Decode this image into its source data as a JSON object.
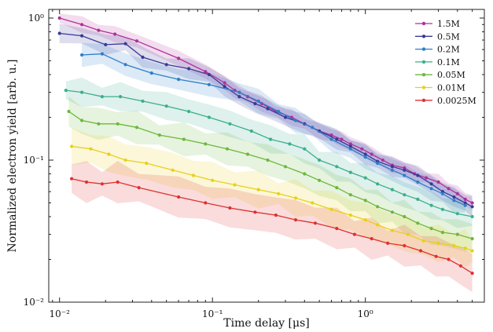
{
  "chart_data": {
    "type": "line",
    "scale": {
      "x": "log",
      "y": "log"
    },
    "xlabel": "Time delay [μs]",
    "ylabel": "Normalized electron yield [arb. u.]",
    "xlim": [
      0.0085,
      6
    ],
    "ylim": [
      0.01,
      1.15
    ],
    "x_ticks": [
      {
        "value": 0.01,
        "label": "10⁻²"
      },
      {
        "value": 0.1,
        "label": "10⁻¹"
      },
      {
        "value": 1,
        "label": "10⁰"
      }
    ],
    "y_ticks": [
      {
        "value": 0.01,
        "label": "10⁻²"
      },
      {
        "value": 0.1,
        "label": "10⁻¹"
      },
      {
        "value": 1,
        "label": "10⁰"
      }
    ],
    "grid": false,
    "legend_position": "top-right",
    "series": [
      {
        "name": "1.5M",
        "color": "#b0309a",
        "points": [
          [
            0.01,
            1.0
          ],
          [
            0.014,
            0.9
          ],
          [
            0.018,
            0.82
          ],
          [
            0.023,
            0.77
          ],
          [
            0.032,
            0.69
          ],
          [
            0.06,
            0.52
          ],
          [
            0.09,
            0.42
          ],
          [
            0.12,
            0.35
          ],
          [
            0.14,
            0.31
          ],
          [
            0.17,
            0.28
          ],
          [
            0.21,
            0.25
          ],
          [
            0.26,
            0.22
          ],
          [
            0.33,
            0.2
          ],
          [
            0.4,
            0.18
          ],
          [
            0.5,
            0.16
          ],
          [
            0.6,
            0.15
          ],
          [
            0.7,
            0.14
          ],
          [
            0.8,
            0.13
          ],
          [
            0.95,
            0.12
          ],
          [
            1.1,
            0.11
          ],
          [
            1.3,
            0.1
          ],
          [
            1.5,
            0.092
          ],
          [
            1.8,
            0.088
          ],
          [
            2.1,
            0.08
          ],
          [
            2.5,
            0.075
          ],
          [
            3.0,
            0.07
          ],
          [
            3.5,
            0.063
          ],
          [
            4.0,
            0.058
          ],
          [
            4.5,
            0.053
          ],
          [
            5.0,
            0.05
          ]
        ]
      },
      {
        "name": "0.5M",
        "color": "#3a3a98",
        "points": [
          [
            0.01,
            0.78
          ],
          [
            0.014,
            0.75
          ],
          [
            0.02,
            0.65
          ],
          [
            0.027,
            0.66
          ],
          [
            0.035,
            0.53
          ],
          [
            0.05,
            0.47
          ],
          [
            0.07,
            0.44
          ],
          [
            0.095,
            0.4
          ],
          [
            0.12,
            0.33
          ],
          [
            0.15,
            0.28
          ],
          [
            0.19,
            0.25
          ],
          [
            0.23,
            0.23
          ],
          [
            0.3,
            0.2
          ],
          [
            0.4,
            0.18
          ],
          [
            0.5,
            0.16
          ],
          [
            0.65,
            0.14
          ],
          [
            0.8,
            0.125
          ],
          [
            1.0,
            0.11
          ],
          [
            1.2,
            0.098
          ],
          [
            1.5,
            0.09
          ],
          [
            1.8,
            0.085
          ],
          [
            2.2,
            0.078
          ],
          [
            2.7,
            0.068
          ],
          [
            3.2,
            0.06
          ],
          [
            3.8,
            0.055
          ],
          [
            4.5,
            0.05
          ],
          [
            5.0,
            0.047
          ]
        ]
      },
      {
        "name": "0.2M",
        "color": "#2e7ec8",
        "points": [
          [
            0.014,
            0.55
          ],
          [
            0.019,
            0.56
          ],
          [
            0.027,
            0.47
          ],
          [
            0.04,
            0.41
          ],
          [
            0.06,
            0.37
          ],
          [
            0.095,
            0.34
          ],
          [
            0.15,
            0.3
          ],
          [
            0.2,
            0.26
          ],
          [
            0.27,
            0.22
          ],
          [
            0.35,
            0.19
          ],
          [
            0.45,
            0.17
          ],
          [
            0.6,
            0.14
          ],
          [
            0.8,
            0.12
          ],
          [
            1.0,
            0.105
          ],
          [
            1.2,
            0.095
          ],
          [
            1.5,
            0.085
          ],
          [
            1.8,
            0.078
          ],
          [
            2.2,
            0.07
          ],
          [
            2.7,
            0.063
          ],
          [
            3.2,
            0.058
          ],
          [
            3.8,
            0.052
          ],
          [
            4.5,
            0.048
          ]
        ]
      },
      {
        "name": "0.1M",
        "color": "#3cae8c",
        "points": [
          [
            0.011,
            0.31
          ],
          [
            0.014,
            0.3
          ],
          [
            0.019,
            0.28
          ],
          [
            0.025,
            0.28
          ],
          [
            0.035,
            0.26
          ],
          [
            0.05,
            0.24
          ],
          [
            0.07,
            0.22
          ],
          [
            0.095,
            0.2
          ],
          [
            0.13,
            0.18
          ],
          [
            0.18,
            0.16
          ],
          [
            0.24,
            0.14
          ],
          [
            0.32,
            0.13
          ],
          [
            0.4,
            0.12
          ],
          [
            0.5,
            0.1
          ],
          [
            0.65,
            0.09
          ],
          [
            0.8,
            0.082
          ],
          [
            1.0,
            0.075
          ],
          [
            1.2,
            0.068
          ],
          [
            1.5,
            0.062
          ],
          [
            1.8,
            0.057
          ],
          [
            2.2,
            0.053
          ],
          [
            2.7,
            0.048
          ],
          [
            3.2,
            0.045
          ],
          [
            4.0,
            0.042
          ],
          [
            5.0,
            0.04
          ]
        ]
      },
      {
        "name": "0.05M",
        "color": "#6cb83c",
        "points": [
          [
            0.0115,
            0.22
          ],
          [
            0.014,
            0.19
          ],
          [
            0.018,
            0.18
          ],
          [
            0.024,
            0.18
          ],
          [
            0.032,
            0.17
          ],
          [
            0.045,
            0.15
          ],
          [
            0.065,
            0.14
          ],
          [
            0.09,
            0.13
          ],
          [
            0.125,
            0.12
          ],
          [
            0.17,
            0.11
          ],
          [
            0.23,
            0.1
          ],
          [
            0.3,
            0.09
          ],
          [
            0.4,
            0.08
          ],
          [
            0.5,
            0.072
          ],
          [
            0.65,
            0.064
          ],
          [
            0.8,
            0.057
          ],
          [
            1.0,
            0.052
          ],
          [
            1.2,
            0.047
          ],
          [
            1.5,
            0.043
          ],
          [
            1.8,
            0.04
          ],
          [
            2.2,
            0.036
          ],
          [
            2.7,
            0.033
          ],
          [
            3.2,
            0.031
          ],
          [
            4.0,
            0.03
          ],
          [
            5.0,
            0.028
          ]
        ]
      },
      {
        "name": "0.01M",
        "color": "#e8d01a",
        "points": [
          [
            0.012,
            0.125
          ],
          [
            0.016,
            0.12
          ],
          [
            0.021,
            0.11
          ],
          [
            0.027,
            0.1
          ],
          [
            0.037,
            0.095
          ],
          [
            0.055,
            0.085
          ],
          [
            0.075,
            0.078
          ],
          [
            0.1,
            0.072
          ],
          [
            0.14,
            0.067
          ],
          [
            0.2,
            0.062
          ],
          [
            0.27,
            0.058
          ],
          [
            0.35,
            0.054
          ],
          [
            0.45,
            0.05
          ],
          [
            0.6,
            0.045
          ],
          [
            0.8,
            0.041
          ],
          [
            1.0,
            0.038
          ],
          [
            1.2,
            0.035
          ],
          [
            1.5,
            0.032
          ],
          [
            1.9,
            0.03
          ],
          [
            2.4,
            0.027
          ],
          [
            3.0,
            0.026
          ],
          [
            3.8,
            0.025
          ],
          [
            4.5,
            0.024
          ],
          [
            5.0,
            0.023
          ]
        ]
      },
      {
        "name": "0.0025M",
        "color": "#e03030",
        "points": [
          [
            0.012,
            0.074
          ],
          [
            0.015,
            0.07
          ],
          [
            0.019,
            0.068
          ],
          [
            0.024,
            0.07
          ],
          [
            0.033,
            0.064
          ],
          [
            0.06,
            0.055
          ],
          [
            0.09,
            0.05
          ],
          [
            0.13,
            0.046
          ],
          [
            0.19,
            0.043
          ],
          [
            0.26,
            0.041
          ],
          [
            0.35,
            0.038
          ],
          [
            0.47,
            0.036
          ],
          [
            0.65,
            0.033
          ],
          [
            0.85,
            0.03
          ],
          [
            1.1,
            0.028
          ],
          [
            1.4,
            0.026
          ],
          [
            1.8,
            0.025
          ],
          [
            2.3,
            0.023
          ],
          [
            2.9,
            0.021
          ],
          [
            3.5,
            0.02
          ],
          [
            4.2,
            0.018
          ],
          [
            5.0,
            0.016
          ]
        ]
      }
    ]
  }
}
